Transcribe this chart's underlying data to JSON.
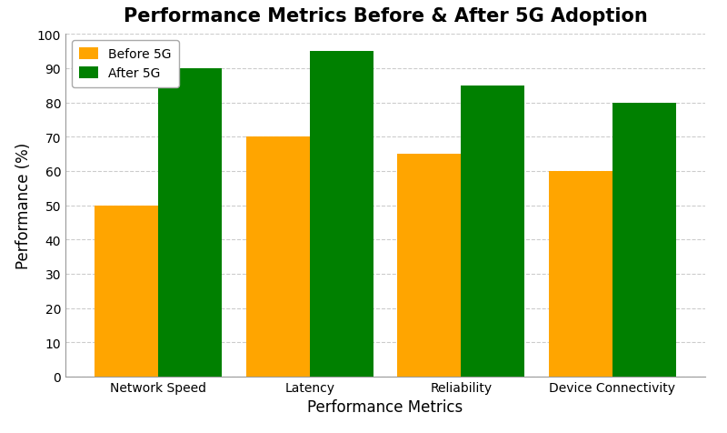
{
  "title": "Performance Metrics Before & After 5G Adoption",
  "xlabel": "Performance Metrics",
  "ylabel": "Performance (%)",
  "categories": [
    "Network Speed",
    "Latency",
    "Reliability",
    "Device Connectivity"
  ],
  "before_5g": [
    50,
    70,
    65,
    60
  ],
  "after_5g": [
    90,
    95,
    85,
    80
  ],
  "before_color": "#FFA500",
  "after_color": "#008000",
  "ylim": [
    0,
    100
  ],
  "yticks": [
    0,
    10,
    20,
    30,
    40,
    50,
    60,
    70,
    80,
    90,
    100
  ],
  "legend_labels": [
    "Before 5G",
    "After 5G"
  ],
  "bar_width": 0.42,
  "background_color": "#ffffff",
  "grid_color": "#cccccc",
  "title_fontsize": 15,
  "label_fontsize": 12,
  "tick_fontsize": 10,
  "legend_fontsize": 10
}
